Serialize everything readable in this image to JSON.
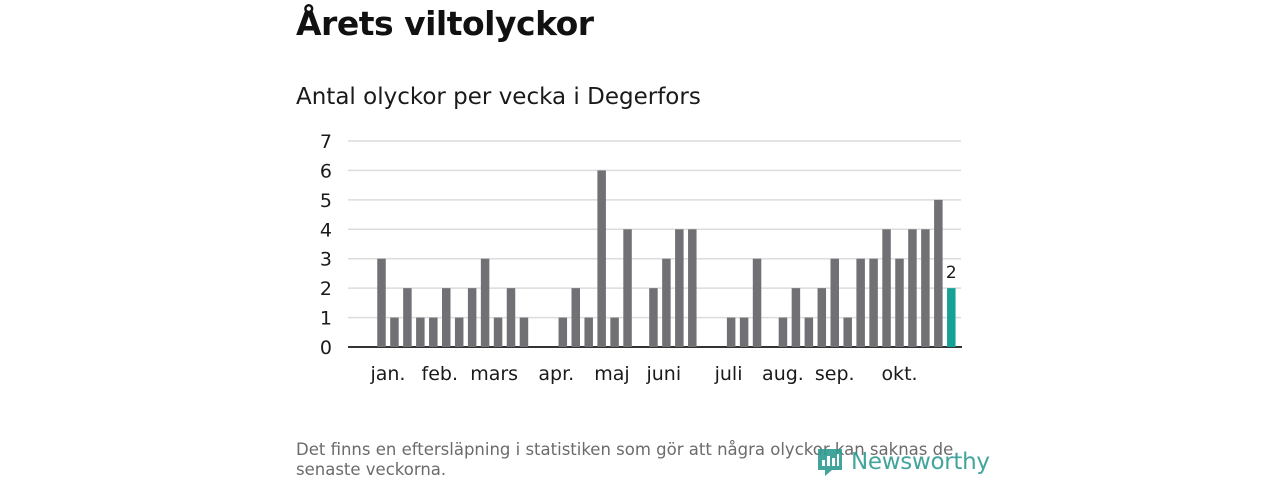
{
  "header": {
    "title": "Årets viltolyckor",
    "subtitle": "Antal olyckor per vecka i Degerfors"
  },
  "footer": {
    "note": "Det finns en eftersläpning i statistiken som gör att några olyckor kan saknas de senaste veckorna.",
    "brand": "Newsworthy"
  },
  "colors": {
    "bar": "#717175",
    "highlight": "#15a195",
    "brand": "#2f9b92"
  },
  "chart_data": {
    "type": "bar",
    "title": "Antal olyckor per vecka i Degerfors",
    "xlabel": "",
    "ylabel": "",
    "ylim": [
      0,
      7
    ],
    "yticks": [
      0,
      1,
      2,
      3,
      4,
      5,
      6,
      7
    ],
    "grid": true,
    "weeks": [
      1,
      2,
      3,
      4,
      5,
      6,
      7,
      8,
      9,
      10,
      11,
      12,
      13,
      14,
      15,
      16,
      17,
      18,
      19,
      20,
      21,
      22,
      23,
      24,
      25,
      26,
      27,
      28,
      29,
      30,
      31,
      32,
      33,
      34,
      35,
      36,
      37,
      38,
      39,
      40,
      41,
      42,
      43,
      44,
      45
    ],
    "values": [
      3,
      1,
      2,
      1,
      1,
      2,
      1,
      2,
      3,
      1,
      2,
      1,
      0,
      0,
      1,
      2,
      1,
      6,
      1,
      4,
      0,
      2,
      3,
      4,
      4,
      0,
      0,
      1,
      1,
      3,
      0,
      1,
      2,
      1,
      2,
      3,
      1,
      3,
      3,
      4,
      3,
      4,
      4,
      5,
      2
    ],
    "highlight_index": 44,
    "highlight_label": "2",
    "month_labels": [
      {
        "label": "jan.",
        "week": 1.5
      },
      {
        "label": "feb.",
        "week": 5.5
      },
      {
        "label": "mars",
        "week": 9.7
      },
      {
        "label": "apr.",
        "week": 14.5
      },
      {
        "label": "maj",
        "week": 18.8
      },
      {
        "label": "juni",
        "week": 22.8
      },
      {
        "label": "juli",
        "week": 27.8
      },
      {
        "label": "aug.",
        "week": 32.0
      },
      {
        "label": "sep.",
        "week": 36.0
      },
      {
        "label": "okt.",
        "week": 41.0
      }
    ]
  }
}
